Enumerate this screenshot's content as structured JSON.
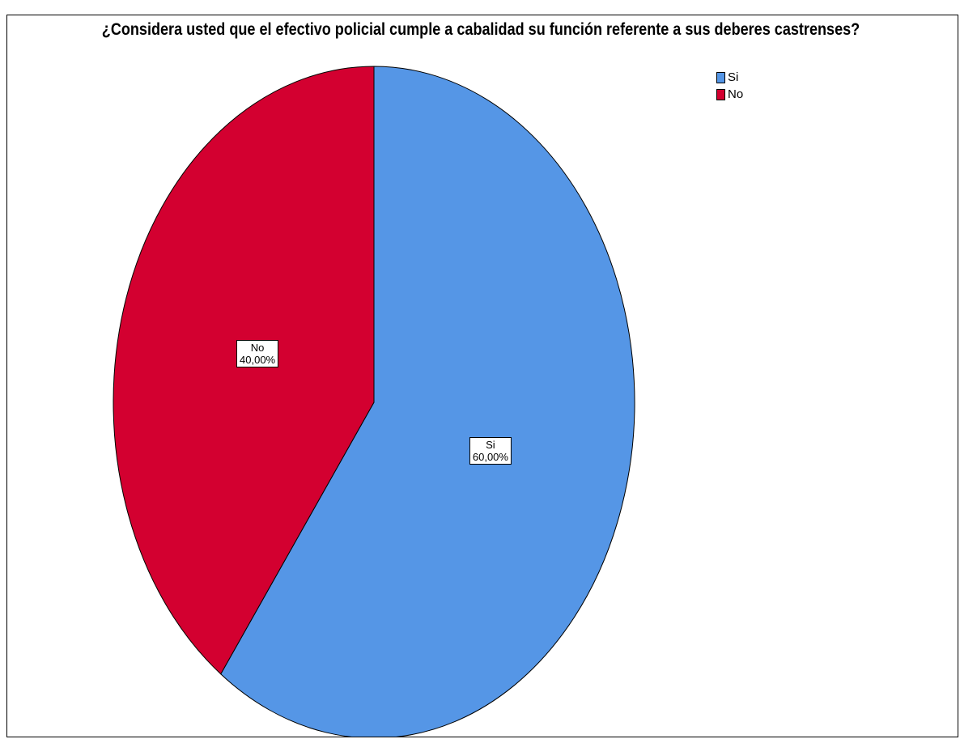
{
  "chart_data": {
    "type": "pie",
    "title": "¿Considera usted que el efectivo policial cumple a cabalidad su función referente a sus deberes castrenses?",
    "categories": [
      "Si",
      "No"
    ],
    "values": [
      60.0,
      40.0
    ],
    "value_labels": [
      "60,00%",
      "40,00%"
    ],
    "colors": [
      "#5596e6",
      "#d30030"
    ],
    "legend": {
      "placement": "top-right",
      "entries": [
        "Si",
        "No"
      ]
    }
  }
}
